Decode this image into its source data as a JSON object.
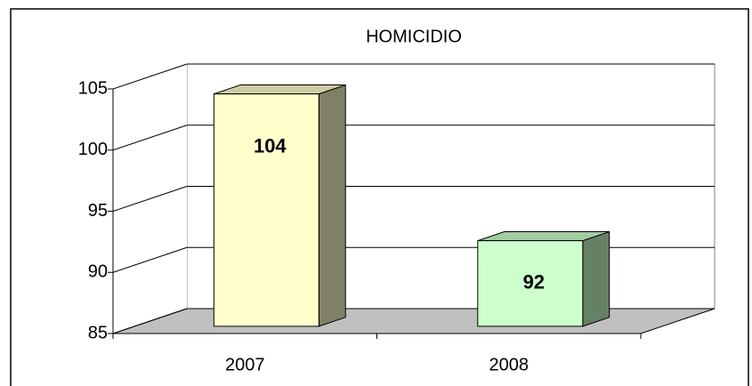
{
  "chart_data": {
    "type": "bar3d",
    "title": "HOMICIDIO",
    "categories": [
      "2007",
      "2008"
    ],
    "values": [
      104,
      92
    ],
    "colors": [
      "#ffffcc",
      "#ccffcc"
    ],
    "ylim": [
      85,
      105
    ],
    "yticks": [
      85,
      90,
      95,
      100,
      105
    ],
    "grid": true
  }
}
